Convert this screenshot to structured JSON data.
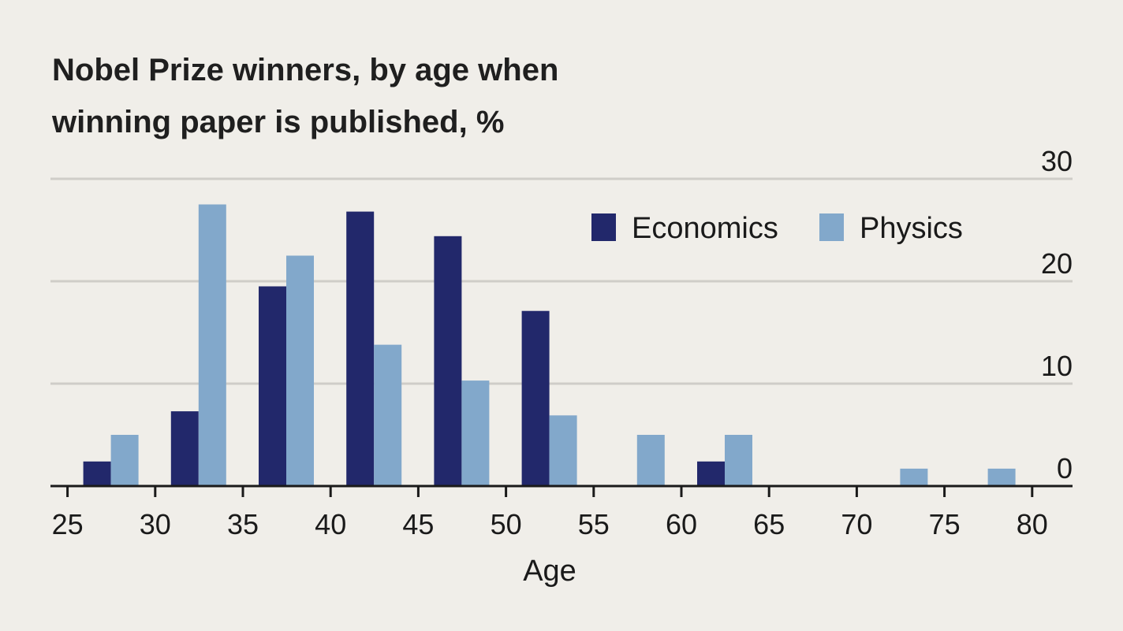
{
  "chart_data": {
    "type": "bar",
    "title_lines": [
      "Nobel Prize winners, by age when",
      "winning paper is published, %"
    ],
    "xlabel": "Age",
    "ylabel": "",
    "x_ticks": [
      25,
      30,
      35,
      40,
      45,
      50,
      55,
      60,
      65,
      70,
      75,
      80
    ],
    "y_ticks": [
      0,
      10,
      20,
      30
    ],
    "xlim": [
      25,
      80
    ],
    "ylim": [
      0,
      30
    ],
    "grid": true,
    "legend_position": "top-right",
    "categories": [
      "25-29",
      "30-34",
      "35-39",
      "40-44",
      "45-49",
      "50-54",
      "55-59",
      "60-64",
      "65-69",
      "70-74",
      "75-79"
    ],
    "series": [
      {
        "name": "Economics",
        "color": "#22286b",
        "values": [
          2.4,
          7.3,
          19.5,
          26.8,
          24.4,
          17.1,
          0,
          2.4,
          0,
          0,
          0
        ]
      },
      {
        "name": "Physics",
        "color": "#82a8cb",
        "values": [
          5.0,
          27.5,
          22.5,
          13.8,
          10.3,
          6.9,
          5.0,
          5.0,
          0,
          1.7,
          1.7
        ]
      }
    ]
  }
}
